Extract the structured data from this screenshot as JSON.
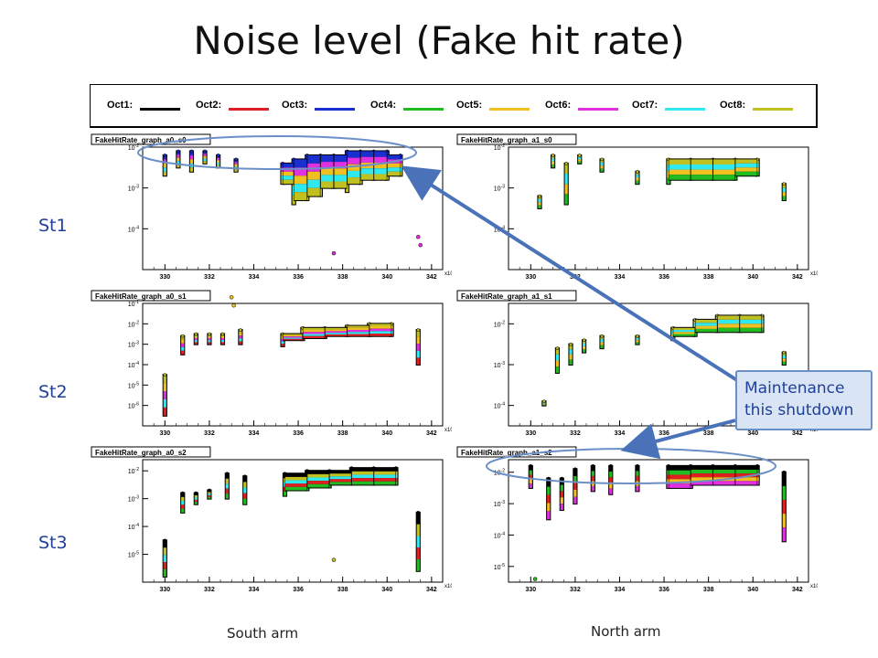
{
  "title": "Noise level (Fake hit rate)",
  "row_labels": [
    "St1",
    "St2",
    "St3"
  ],
  "arm_labels": {
    "south": "South arm",
    "north": "North arm"
  },
  "callout": "Maintenance this shutdown",
  "legend": [
    {
      "label": "Oct1:",
      "color": "#000000"
    },
    {
      "label": "Oct2:",
      "color": "#e02020"
    },
    {
      "label": "Oct3:",
      "color": "#1a2fd0"
    },
    {
      "label": "Oct4:",
      "color": "#22bb22"
    },
    {
      "label": "Oct5:",
      "color": "#f0c020"
    },
    {
      "label": "Oct6:",
      "color": "#e030e0"
    },
    {
      "label": "Oct7:",
      "color": "#30e8f0"
    },
    {
      "label": "Oct8:",
      "color": "#c0c020"
    }
  ],
  "chart_data": [
    {
      "type": "scatter",
      "title": "FakeHitRate_graph_a0_s0",
      "xlim": [
        329,
        342.5
      ],
      "x_ticks": [
        "330",
        "332",
        "334",
        "336",
        "338",
        "340",
        "342"
      ],
      "x_exponent": "x10^3",
      "log_y": true,
      "ylim": [
        -5,
        -2
      ],
      "y_ticks": [
        {
          "e": -2,
          "label": "10^-2"
        },
        {
          "e": -3,
          "label": "10^-3"
        },
        {
          "e": -4,
          "label": "10^-4"
        }
      ],
      "colors": [
        "#1a2fd0",
        "#e030e0",
        "#f0c020",
        "#30e8f0",
        "#c0c020"
      ],
      "points": [
        [
          330,
          -2.7,
          -2.2
        ],
        [
          330.6,
          -2.5,
          -2.1
        ],
        [
          331.2,
          -2.6,
          -2.1
        ],
        [
          331.8,
          -2.4,
          -2.1
        ],
        [
          332.4,
          -2.5,
          -2.2
        ],
        [
          333.2,
          -2.6,
          -2.3
        ],
        [
          335.3,
          -2.9,
          -2.4
        ],
        [
          335.8,
          -3.4,
          -2.3
        ],
        [
          336.4,
          -3.3,
          -2.2
        ],
        [
          337.0,
          -3.2,
          -2.2
        ],
        [
          337.6,
          -3.0,
          -2.2
        ],
        [
          338.2,
          -3.1,
          -2.1
        ],
        [
          338.8,
          -2.9,
          -2.1
        ],
        [
          339.4,
          -2.8,
          -2.1
        ],
        [
          340.0,
          -2.8,
          -2.1
        ],
        [
          340.6,
          -2.7,
          -2.2
        ],
        [
          341.4,
          -3.0,
          -2.9
        ]
      ],
      "outliers": [
        [
          337.6,
          -4.6
        ],
        [
          341.4,
          -4.2
        ],
        [
          341.5,
          -4.4
        ]
      ]
    },
    {
      "type": "scatter",
      "title": "FakeHitRate_graph_a1_s0",
      "xlim": [
        329,
        342.5
      ],
      "x_ticks": [
        "330",
        "332",
        "334",
        "336",
        "338",
        "340",
        "342"
      ],
      "x_exponent": "x10^3",
      "log_y": true,
      "ylim": [
        -5,
        -2
      ],
      "y_ticks": [
        {
          "e": -2,
          "label": "10^-2"
        },
        {
          "e": -3,
          "label": "10^-3"
        },
        {
          "e": -4,
          "label": "10^-4"
        }
      ],
      "colors": [
        "#c0c020",
        "#30e8f0",
        "#f0c020",
        "#22bb22"
      ],
      "points": [
        [
          330.4,
          -3.5,
          -3.2
        ],
        [
          331,
          -2.5,
          -2.2
        ],
        [
          331.6,
          -3.4,
          -2.4
        ],
        [
          332.2,
          -2.4,
          -2.2
        ],
        [
          333.2,
          -2.6,
          -2.3
        ],
        [
          334.8,
          -2.9,
          -2.6
        ],
        [
          336.2,
          -2.9,
          -2.3
        ],
        [
          337.2,
          -2.8,
          -2.3
        ],
        [
          338.2,
          -2.8,
          -2.3
        ],
        [
          339.2,
          -2.8,
          -2.3
        ],
        [
          340.2,
          -2.7,
          -2.3
        ],
        [
          341.4,
          -3.3,
          -2.9
        ]
      ],
      "outliers": []
    },
    {
      "type": "scatter",
      "title": "FakeHitRate_graph_a0_s1",
      "xlim": [
        329,
        342.5
      ],
      "x_ticks": [
        "330",
        "332",
        "334",
        "336",
        "338",
        "340",
        "342"
      ],
      "x_exponent": "x10^3",
      "log_y": true,
      "ylim": [
        -7,
        -1
      ],
      "y_ticks": [
        {
          "e": -1,
          "label": "10^-1"
        },
        {
          "e": -2,
          "label": "10^-2"
        },
        {
          "e": -3,
          "label": "10^-3"
        },
        {
          "e": -4,
          "label": "10^-4"
        },
        {
          "e": -5,
          "label": "10^-5"
        },
        {
          "e": -6,
          "label": "10^-6"
        }
      ],
      "colors": [
        "#c0c020",
        "#f0c020",
        "#e030e0",
        "#30e8f0",
        "#e02020"
      ],
      "points": [
        [
          330,
          -6.5,
          -4.5
        ],
        [
          330.8,
          -3.5,
          -2.6
        ],
        [
          331.4,
          -3.0,
          -2.5
        ],
        [
          332,
          -3.0,
          -2.5
        ],
        [
          332.6,
          -3.0,
          -2.5
        ],
        [
          333.4,
          -3.0,
          -2.3
        ],
        [
          335.3,
          -3.1,
          -2.5
        ],
        [
          336.2,
          -2.8,
          -2.2
        ],
        [
          337.2,
          -2.7,
          -2.2
        ],
        [
          338.2,
          -2.6,
          -2.1
        ],
        [
          339.2,
          -2.6,
          -2.0
        ],
        [
          340.2,
          -2.6,
          -2.0
        ],
        [
          341.4,
          -4.0,
          -2.3
        ]
      ],
      "outliers": [
        [
          333.0,
          -0.7
        ],
        [
          333.1,
          -1.1
        ]
      ]
    },
    {
      "type": "scatter",
      "title": "FakeHitRate_graph_a1_s1",
      "xlim": [
        329,
        342.5
      ],
      "x_ticks": [
        "330",
        "332",
        "334",
        "336",
        "338",
        "340",
        "342"
      ],
      "x_exponent": "x10^3",
      "log_y": true,
      "ylim": [
        -4.5,
        -1.5
      ],
      "y_ticks": [
        {
          "e": -2,
          "label": "10^-2"
        },
        {
          "e": -3,
          "label": "10^-3"
        },
        {
          "e": -4,
          "label": "10^-4"
        }
      ],
      "colors": [
        "#c0c020",
        "#30e8f0",
        "#f0c020",
        "#22bb22"
      ],
      "points": [
        [
          330.6,
          -4.0,
          -3.9
        ],
        [
          331.2,
          -3.2,
          -2.6
        ],
        [
          331.8,
          -3.0,
          -2.5
        ],
        [
          332.4,
          -2.7,
          -2.4
        ],
        [
          333.2,
          -2.6,
          -2.3
        ],
        [
          334.8,
          -2.5,
          -2.3
        ],
        [
          336.4,
          -2.4,
          -2.1
        ],
        [
          337.4,
          -2.3,
          -1.9
        ],
        [
          338.4,
          -2.2,
          -1.8
        ],
        [
          339.4,
          -2.2,
          -1.8
        ],
        [
          340.4,
          -2.2,
          -1.8
        ],
        [
          341.4,
          -3.0,
          -2.7
        ]
      ],
      "outliers": []
    },
    {
      "type": "scatter",
      "title": "FakeHitRate_graph_a0_s2",
      "xlim": [
        329,
        342.5
      ],
      "x_ticks": [
        "330",
        "332",
        "334",
        "336",
        "338",
        "340",
        "342"
      ],
      "x_exponent": "x10^3",
      "log_y": true,
      "ylim": [
        -6,
        -1.6
      ],
      "y_ticks": [
        {
          "e": -2,
          "label": "10^-2"
        },
        {
          "e": -3,
          "label": "10^-3"
        },
        {
          "e": -4,
          "label": "10^-4"
        },
        {
          "e": -5,
          "label": "10^-5"
        }
      ],
      "colors": [
        "#000000",
        "#c0c020",
        "#30e8f0",
        "#e02020",
        "#22bb22"
      ],
      "points": [
        [
          330,
          -5.8,
          -4.5
        ],
        [
          330.8,
          -3.5,
          -2.8
        ],
        [
          331.4,
          -3.2,
          -2.8
        ],
        [
          332,
          -3.0,
          -2.7
        ],
        [
          332.8,
          -3.0,
          -2.1
        ],
        [
          333.6,
          -3.2,
          -2.2
        ],
        [
          335.4,
          -2.9,
          -2.1
        ],
        [
          336.4,
          -2.7,
          -2.0
        ],
        [
          337.4,
          -2.6,
          -2.0
        ],
        [
          338.4,
          -2.5,
          -1.9
        ],
        [
          339.4,
          -2.5,
          -1.9
        ],
        [
          340.4,
          -2.5,
          -1.9
        ],
        [
          341.4,
          -5.6,
          -3.5
        ]
      ],
      "outliers": [
        [
          337.6,
          -5.2
        ]
      ]
    },
    {
      "type": "scatter",
      "title": "FakeHitRate_graph_a1_s2",
      "xlim": [
        329,
        342.5
      ],
      "x_ticks": [
        "330",
        "332",
        "334",
        "336",
        "338",
        "340",
        "342"
      ],
      "x_exponent": "x10^3",
      "log_y": true,
      "ylim": [
        -5.5,
        -1.6
      ],
      "y_ticks": [
        {
          "e": -2,
          "label": "10^-2"
        },
        {
          "e": -3,
          "label": "10^-3"
        },
        {
          "e": -4,
          "label": "10^-4"
        },
        {
          "e": -5,
          "label": "10^-5"
        }
      ],
      "colors": [
        "#000000",
        "#22bb22",
        "#e02020",
        "#f0c020",
        "#e030e0"
      ],
      "points": [
        [
          330,
          -2.5,
          -1.8
        ],
        [
          330.8,
          -3.5,
          -2.2
        ],
        [
          331.4,
          -3.2,
          -2.2
        ],
        [
          332,
          -3.0,
          -1.9
        ],
        [
          332.8,
          -2.6,
          -1.8
        ],
        [
          333.6,
          -2.7,
          -1.8
        ],
        [
          334.8,
          -2.6,
          -1.8
        ],
        [
          336.2,
          -2.5,
          -1.8
        ],
        [
          337.2,
          -2.5,
          -1.8
        ],
        [
          338.2,
          -2.4,
          -1.8
        ],
        [
          339.2,
          -2.4,
          -1.8
        ],
        [
          340.2,
          -2.4,
          -1.8
        ],
        [
          341.4,
          -4.2,
          -2.0
        ]
      ],
      "outliers": [
        [
          330.2,
          -5.4
        ]
      ]
    }
  ]
}
